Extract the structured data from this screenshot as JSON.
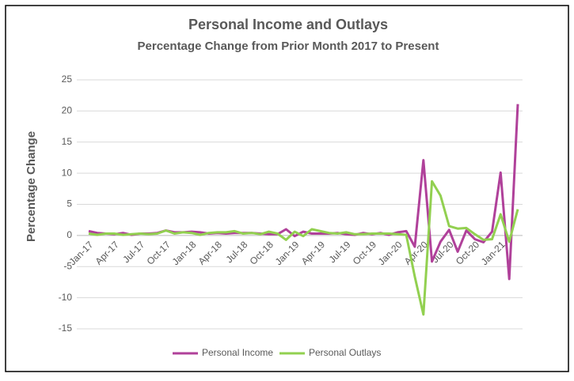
{
  "chart_data": {
    "type": "line",
    "title": "Personal Income and Outlays",
    "subtitle": "Percentage Change from Prior Month 2017 to Present",
    "y_label": "Percentage Change",
    "categories": [
      "Jan-17",
      null,
      null,
      "Apr-17",
      null,
      null,
      "Jul-17",
      null,
      null,
      "Oct-17",
      null,
      null,
      "Jan-18",
      null,
      null,
      "Apr-18",
      null,
      null,
      "Jul-18",
      null,
      null,
      "Oct-18",
      null,
      null,
      "Jan-19",
      null,
      null,
      "Apr-19",
      null,
      null,
      "Jul-19",
      null,
      null,
      "Oct-19",
      null,
      null,
      "Jan-20",
      null,
      null,
      "Apr-20",
      null,
      null,
      "Jul-20",
      null,
      null,
      "Oct-20",
      null,
      null,
      "Jan-21",
      null,
      null
    ],
    "series": [
      {
        "name": "Personal Income",
        "color": "#b0419a",
        "values": [
          0.7,
          0.4,
          0.3,
          0.2,
          0.4,
          0.1,
          0.3,
          0.3,
          0.4,
          0.8,
          0.5,
          0.5,
          0.6,
          0.5,
          0.3,
          0.4,
          0.3,
          0.4,
          0.4,
          0.4,
          0.3,
          0.2,
          0.2,
          1.0,
          -0.1,
          0.6,
          0.3,
          0.3,
          0.3,
          0.4,
          0.2,
          0.1,
          0.4,
          0.2,
          0.4,
          0.1,
          0.5,
          0.7,
          -1.8,
          12.1,
          -4.2,
          -1.0,
          0.9,
          -2.6,
          0.8,
          -0.6,
          -1.1,
          0.6,
          10.1,
          -7.0,
          21.1
        ]
      },
      {
        "name": "Personal Outlays",
        "color": "#92d050",
        "values": [
          0.3,
          0.1,
          0.3,
          0.3,
          0.1,
          0.2,
          0.3,
          0.2,
          0.3,
          0.8,
          0.3,
          0.5,
          0.4,
          0.1,
          0.4,
          0.5,
          0.5,
          0.7,
          0.3,
          0.4,
          0.2,
          0.6,
          0.3,
          -0.7,
          0.6,
          -0.1,
          1.0,
          0.7,
          0.4,
          0.3,
          0.5,
          0.2,
          0.2,
          0.3,
          0.3,
          0.3,
          0.2,
          0.1,
          -6.6,
          -12.7,
          8.7,
          6.4,
          1.5,
          1.1,
          1.2,
          0.2,
          -0.7,
          -0.6,
          3.4,
          -1.0,
          4.2
        ]
      }
    ],
    "ylim": [
      -15,
      25
    ],
    "yticks": [
      -15,
      -10,
      -5,
      0,
      5,
      10,
      15,
      20,
      25
    ],
    "grid": true,
    "legend": "bottom"
  }
}
